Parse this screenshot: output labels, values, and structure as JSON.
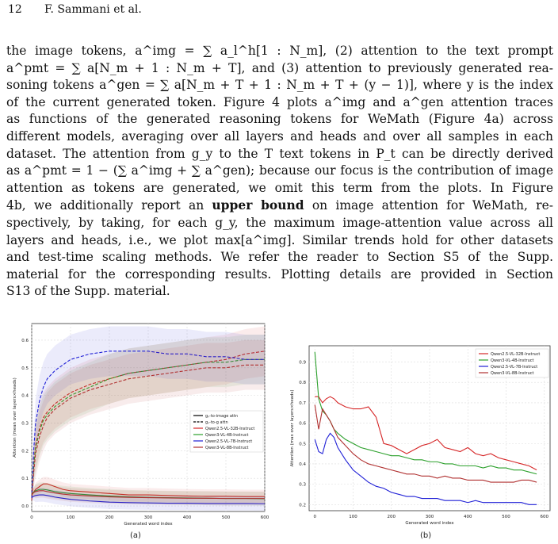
{
  "header": {
    "page_number": "12",
    "authors": "F. Sammani et al."
  },
  "body_lines": [
    "the image tokens, a^img = ∑ a_l^h[1 : N_m], (2) attention to the text prompt",
    "a^pmt = ∑ a[N_m + 1 : N_m + T], and (3) attention to previously generated rea-",
    "soning tokens a^gen = ∑ a[N_m + T + 1 : N_m + T + (y − 1)], where y is the index",
    "of the current generated token. Figure 4 plots a^img and a^gen attention traces",
    "as functions of the generated reasoning tokens for WeMath (Figure 4a) across",
    "different models, averaging over all layers and heads and over all samples in each",
    "dataset. The attention from g_y to the T text tokens in P_t can be directly derived",
    "as a^pmt = 1 − (∑ a^img + ∑ a^gen); because our focus is the contribution of image",
    "attention as tokens are generated, we omit this term from the plots. In Figure",
    "4b, we additionally report an upper bound on image attention for WeMath, re-",
    "spectively, by taking, for each g_y, the maximum image-attention value across all",
    "layers and heads, i.e., we plot max[a^img]. Similar trends hold for other datasets",
    "and test-time scaling methods. We refer the reader to Section S5 of the Supp.",
    "material for the corresponding results. Plotting details are provided in Section",
    "S13 of the Supp. material."
  ],
  "bold_phrase": "upper bound",
  "chart_data": [
    {
      "type": "line",
      "caption": "(a)",
      "xlabel": "Generated word index",
      "ylabel": "Attention (mean over layers×heads)",
      "xlim": [
        0,
        600
      ],
      "ylim": [
        -0.02,
        0.66
      ],
      "xticks": [
        0,
        100,
        200,
        300,
        400,
        500,
        600
      ],
      "yticks": [
        0.0,
        0.1,
        0.2,
        0.3,
        0.4,
        0.5,
        0.6
      ],
      "grid": true,
      "legend_placement": "center-right",
      "legend": [
        {
          "label": "gᵧ-to-image attn",
          "color": "#000000",
          "style": "solid"
        },
        {
          "label": "gᵧ-to-g attn",
          "color": "#000000",
          "style": "dashed"
        },
        {
          "label": "Qwen2.5-VL-32B-Instruct",
          "color": "#d62728",
          "style": "solid"
        },
        {
          "label": "Qwen3-VL-4B-Instruct",
          "color": "#2ca02c",
          "style": "solid"
        },
        {
          "label": "Qwen2.5-VL-7B-Instruct",
          "color": "#1f1fd6",
          "style": "solid"
        },
        {
          "label": "Qwen3-VL-8B-Instruct",
          "color": "#b03030",
          "style": "solid"
        }
      ],
      "x": [
        0,
        5,
        10,
        20,
        30,
        40,
        60,
        80,
        100,
        150,
        200,
        250,
        300,
        350,
        400,
        450,
        500,
        550,
        600
      ],
      "series": [
        {
          "name": "Qwen2.5-VL-32B-Instruct",
          "kind": "gen",
          "color": "#d62728",
          "values": [
            0.03,
            0.15,
            0.22,
            0.28,
            0.32,
            0.34,
            0.37,
            0.39,
            0.41,
            0.44,
            0.46,
            0.48,
            0.49,
            0.5,
            0.51,
            0.52,
            0.53,
            0.55,
            0.56
          ]
        },
        {
          "name": "Qwen3-VL-4B-Instruct",
          "kind": "gen",
          "color": "#2ca02c",
          "values": [
            0.03,
            0.14,
            0.21,
            0.27,
            0.31,
            0.33,
            0.36,
            0.38,
            0.4,
            0.43,
            0.46,
            0.48,
            0.49,
            0.5,
            0.51,
            0.52,
            0.52,
            0.53,
            0.53
          ]
        },
        {
          "name": "Qwen2.5-VL-7B-Instruct",
          "kind": "gen",
          "color": "#1f1fd6",
          "values": [
            0.03,
            0.2,
            0.3,
            0.38,
            0.43,
            0.46,
            0.49,
            0.51,
            0.53,
            0.55,
            0.56,
            0.56,
            0.56,
            0.55,
            0.55,
            0.54,
            0.54,
            0.53,
            0.53
          ]
        },
        {
          "name": "Qwen3-VL-8B-Instruct",
          "kind": "gen",
          "color": "#b03030",
          "values": [
            0.02,
            0.12,
            0.19,
            0.25,
            0.29,
            0.32,
            0.35,
            0.37,
            0.39,
            0.42,
            0.44,
            0.46,
            0.47,
            0.48,
            0.49,
            0.5,
            0.5,
            0.51,
            0.51
          ]
        },
        {
          "name": "Qwen2.5-VL-32B-Instruct",
          "kind": "img",
          "color": "#d62728",
          "values": [
            0.04,
            0.05,
            0.06,
            0.07,
            0.08,
            0.08,
            0.07,
            0.06,
            0.055,
            0.05,
            0.045,
            0.04,
            0.04,
            0.038,
            0.036,
            0.035,
            0.035,
            0.034,
            0.034
          ]
        },
        {
          "name": "Qwen3-VL-4B-Instruct",
          "kind": "img",
          "color": "#2ca02c",
          "values": [
            0.04,
            0.05,
            0.055,
            0.06,
            0.06,
            0.058,
            0.052,
            0.048,
            0.045,
            0.04,
            0.036,
            0.033,
            0.031,
            0.03,
            0.029,
            0.028,
            0.027,
            0.027,
            0.026
          ]
        },
        {
          "name": "Qwen2.5-VL-7B-Instruct",
          "kind": "img",
          "color": "#1f1fd6",
          "values": [
            0.03,
            0.035,
            0.038,
            0.04,
            0.04,
            0.038,
            0.032,
            0.028,
            0.024,
            0.018,
            0.014,
            0.012,
            0.011,
            0.01,
            0.01,
            0.009,
            0.009,
            0.009,
            0.008
          ]
        },
        {
          "name": "Qwen3-VL-8B-Instruct",
          "kind": "img",
          "color": "#b03030",
          "values": [
            0.04,
            0.048,
            0.052,
            0.055,
            0.055,
            0.052,
            0.047,
            0.043,
            0.04,
            0.036,
            0.033,
            0.031,
            0.03,
            0.029,
            0.028,
            0.028,
            0.027,
            0.027,
            0.027
          ]
        }
      ]
    },
    {
      "type": "line",
      "caption": "(b)",
      "xlabel": "Generated word index",
      "ylabel": "Attention (max over layers×heads)",
      "xlim": [
        -15,
        615
      ],
      "ylim": [
        0.17,
        0.98
      ],
      "xticks": [
        0,
        100,
        200,
        300,
        400,
        500,
        600
      ],
      "yticks": [
        0.2,
        0.3,
        0.4,
        0.5,
        0.6,
        0.7,
        0.8,
        0.9
      ],
      "grid": true,
      "legend_placement": "top-right",
      "legend": [
        {
          "label": "Qwen2.5-VL-32B-Instruct",
          "color": "#d62728"
        },
        {
          "label": "Qwen3-VL-4B-Instruct",
          "color": "#2ca02c"
        },
        {
          "label": "Qwen2.5-VL-7B-Instruct",
          "color": "#1f1fd6"
        },
        {
          "label": "Qwen3-VL-8B-Instruct",
          "color": "#b03030"
        }
      ],
      "x": [
        0,
        10,
        20,
        30,
        40,
        50,
        60,
        80,
        100,
        120,
        140,
        160,
        180,
        200,
        220,
        240,
        260,
        280,
        300,
        320,
        340,
        360,
        380,
        400,
        420,
        440,
        460,
        480,
        500,
        520,
        540,
        560,
        580
      ],
      "series": [
        {
          "name": "Qwen2.5-VL-32B-Instruct",
          "color": "#d62728",
          "values": [
            0.73,
            0.73,
            0.7,
            0.72,
            0.73,
            0.72,
            0.7,
            0.68,
            0.67,
            0.67,
            0.68,
            0.63,
            0.5,
            0.49,
            0.47,
            0.45,
            0.47,
            0.49,
            0.5,
            0.52,
            0.48,
            0.47,
            0.46,
            0.48,
            0.45,
            0.44,
            0.45,
            0.43,
            0.42,
            0.41,
            0.4,
            0.39,
            0.37
          ]
        },
        {
          "name": "Qwen3-VL-4B-Instruct",
          "color": "#2ca02c",
          "values": [
            0.95,
            0.72,
            0.66,
            0.64,
            0.61,
            0.57,
            0.55,
            0.52,
            0.5,
            0.48,
            0.47,
            0.46,
            0.45,
            0.44,
            0.44,
            0.43,
            0.42,
            0.42,
            0.41,
            0.41,
            0.4,
            0.4,
            0.39,
            0.39,
            0.39,
            0.38,
            0.39,
            0.38,
            0.38,
            0.37,
            0.37,
            0.36,
            0.35
          ]
        },
        {
          "name": "Qwen2.5-VL-7B-Instruct",
          "color": "#1f1fd6",
          "values": [
            0.52,
            0.46,
            0.45,
            0.52,
            0.55,
            0.53,
            0.48,
            0.42,
            0.37,
            0.34,
            0.31,
            0.29,
            0.28,
            0.26,
            0.25,
            0.24,
            0.24,
            0.23,
            0.23,
            0.23,
            0.22,
            0.22,
            0.22,
            0.21,
            0.22,
            0.21,
            0.21,
            0.21,
            0.21,
            0.21,
            0.21,
            0.2,
            0.2
          ]
        },
        {
          "name": "Qwen3-VL-8B-Instruct",
          "color": "#b03030",
          "values": [
            0.69,
            0.57,
            0.67,
            0.64,
            0.61,
            0.57,
            0.53,
            0.49,
            0.45,
            0.42,
            0.4,
            0.39,
            0.38,
            0.37,
            0.36,
            0.35,
            0.35,
            0.34,
            0.34,
            0.33,
            0.34,
            0.33,
            0.33,
            0.32,
            0.32,
            0.32,
            0.31,
            0.31,
            0.31,
            0.31,
            0.32,
            0.32,
            0.31
          ]
        }
      ]
    }
  ]
}
